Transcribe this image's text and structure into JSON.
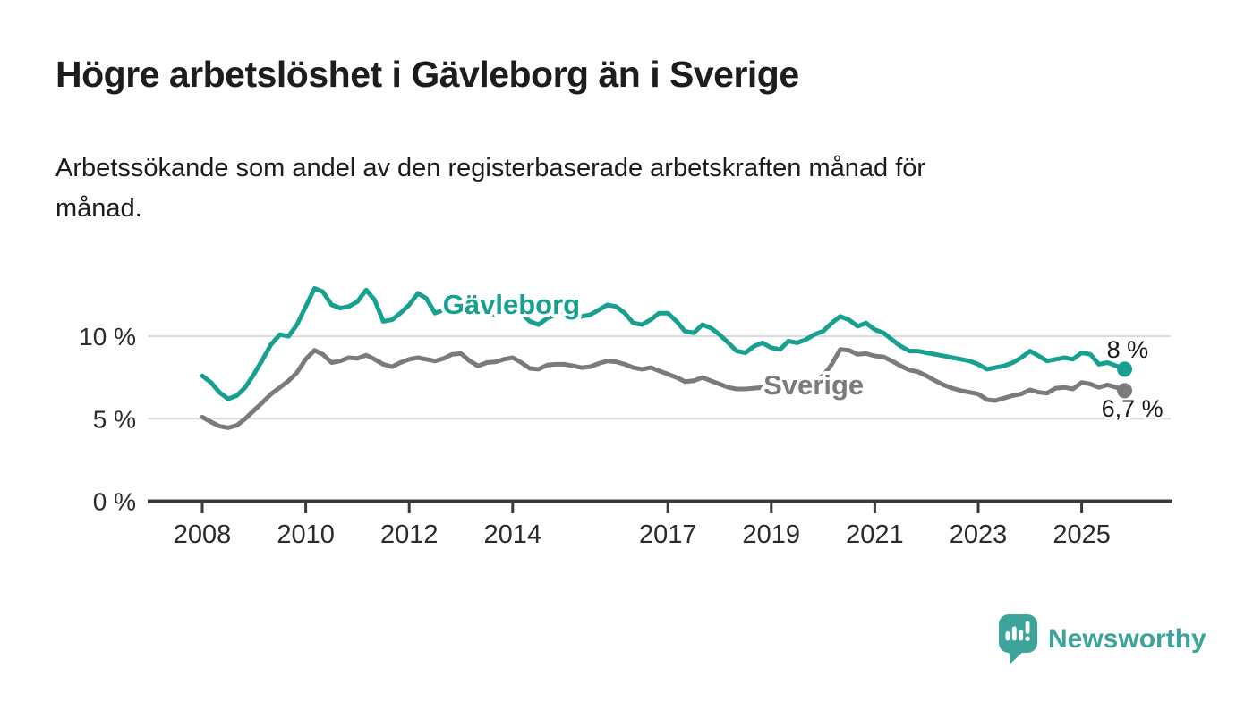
{
  "header": {
    "title": "Högre arbetslöshet i Gävleborg än i Sverige",
    "subtitle_lines": [
      "Arbetssökande som andel av den registerbaserade arbetskraften månad för",
      "månad."
    ]
  },
  "branding": {
    "logo_text": "Newsworthy",
    "logo_color": "#3ca49a"
  },
  "colors": {
    "gavleborg": "#17a08f",
    "sverige": "#7b7b7b",
    "grid": "#dcdcdc",
    "axis": "#3a3a3a",
    "tick_text": "#2b2b2b",
    "title_text": "#1d1d1b",
    "value_label_text": "#1a1a1a"
  },
  "chart_data": {
    "type": "line",
    "title": "Högre arbetslöshet i Gävleborg än i Sverige",
    "subtitle": "Arbetssökande som andel av den registerbaserade arbetskraften månad för månad.",
    "xlabel": "",
    "ylabel": "",
    "unit": "%",
    "legend_position": "inline-labels",
    "grid": "horizontal",
    "x_axis": {
      "range": [
        2007.0,
        2026.8
      ],
      "ticks": [
        2008,
        2010,
        2012,
        2014,
        2017,
        2019,
        2021,
        2023,
        2025
      ],
      "labels": [
        "2008",
        "2010",
        "2012",
        "2014",
        "2017",
        "2019",
        "2021",
        "2023",
        "2025"
      ]
    },
    "y_axis": {
      "range": [
        0,
        13.5
      ],
      "ticks": [
        0,
        5,
        10
      ],
      "labels": [
        "0 %",
        "5 %",
        "10 %"
      ],
      "gridlines": [
        5,
        10
      ]
    },
    "x": [
      2008,
      2008.17,
      2008.33,
      2008.5,
      2008.67,
      2008.83,
      2009,
      2009.17,
      2009.33,
      2009.5,
      2009.67,
      2009.83,
      2010,
      2010.17,
      2010.33,
      2010.5,
      2010.67,
      2010.83,
      2011,
      2011.17,
      2011.33,
      2011.5,
      2011.67,
      2011.83,
      2012,
      2012.17,
      2012.33,
      2012.5,
      2012.67,
      2012.83,
      2013,
      2013.17,
      2013.33,
      2013.5,
      2013.67,
      2013.83,
      2014,
      2014.17,
      2014.33,
      2014.5,
      2014.67,
      2014.83,
      2015,
      2015.17,
      2015.33,
      2015.5,
      2015.67,
      2015.83,
      2016,
      2016.17,
      2016.33,
      2016.5,
      2016.67,
      2016.83,
      2017,
      2017.17,
      2017.33,
      2017.5,
      2017.67,
      2017.83,
      2018,
      2018.17,
      2018.33,
      2018.5,
      2018.67,
      2018.83,
      2019,
      2019.17,
      2019.33,
      2019.5,
      2019.67,
      2019.83,
      2020,
      2020.17,
      2020.33,
      2020.5,
      2020.67,
      2020.83,
      2021,
      2021.17,
      2021.33,
      2021.5,
      2021.67,
      2021.83,
      2022,
      2022.17,
      2022.33,
      2022.5,
      2022.67,
      2022.83,
      2023,
      2023.17,
      2023.33,
      2023.5,
      2023.67,
      2023.83,
      2024,
      2024.17,
      2024.33,
      2024.5,
      2024.67,
      2024.83,
      2025,
      2025.17,
      2025.33,
      2025.5,
      2025.67,
      2025.83
    ],
    "series": [
      {
        "id": "gavleborg",
        "name": "Gävleborg",
        "color": "#17a08f",
        "end_label": "8 %",
        "end_value": 8.0,
        "label_anchor": {
          "x": 2012.65,
          "y": 11.35
        },
        "values": [
          7.6,
          7.2,
          6.6,
          6.2,
          6.4,
          6.9,
          7.7,
          8.6,
          9.5,
          10.1,
          10.0,
          10.7,
          11.8,
          12.9,
          12.7,
          11.9,
          11.7,
          11.8,
          12.1,
          12.8,
          12.2,
          10.9,
          11.0,
          11.4,
          11.9,
          12.6,
          12.3,
          11.4,
          11.6,
          11.9,
          12.1,
          12.0,
          11.6,
          11.4,
          11.3,
          11.6,
          11.7,
          11.4,
          10.9,
          10.7,
          11.1,
          11.3,
          11.5,
          11.4,
          11.2,
          11.3,
          11.6,
          11.9,
          11.8,
          11.4,
          10.8,
          10.7,
          11.0,
          11.4,
          11.4,
          10.9,
          10.3,
          10.2,
          10.7,
          10.5,
          10.1,
          9.6,
          9.1,
          9.0,
          9.4,
          9.6,
          9.3,
          9.2,
          9.7,
          9.6,
          9.8,
          10.1,
          10.3,
          10.8,
          11.2,
          11.0,
          10.6,
          10.8,
          10.4,
          10.2,
          9.8,
          9.4,
          9.1,
          9.1,
          9.0,
          8.9,
          8.8,
          8.7,
          8.6,
          8.5,
          8.3,
          8.0,
          8.1,
          8.2,
          8.4,
          8.7,
          9.1,
          8.8,
          8.5,
          8.6,
          8.7,
          8.6,
          9.0,
          8.9,
          8.3,
          8.4,
          8.2,
          8.0
        ]
      },
      {
        "id": "sverige",
        "name": "Sverige",
        "color": "#7b7b7b",
        "end_label": "6,7 %",
        "end_value": 6.7,
        "label_anchor": {
          "x": 2018.85,
          "y": 6.48
        },
        "values": [
          5.1,
          4.8,
          4.55,
          4.45,
          4.6,
          5.0,
          5.5,
          6.0,
          6.5,
          6.9,
          7.3,
          7.8,
          8.6,
          9.15,
          8.9,
          8.4,
          8.5,
          8.7,
          8.65,
          8.85,
          8.6,
          8.3,
          8.15,
          8.4,
          8.6,
          8.7,
          8.6,
          8.5,
          8.65,
          8.9,
          8.95,
          8.5,
          8.2,
          8.4,
          8.45,
          8.6,
          8.7,
          8.4,
          8.05,
          8.0,
          8.25,
          8.3,
          8.3,
          8.2,
          8.1,
          8.15,
          8.35,
          8.5,
          8.45,
          8.3,
          8.1,
          8.0,
          8.1,
          7.9,
          7.7,
          7.5,
          7.25,
          7.3,
          7.5,
          7.3,
          7.1,
          6.9,
          6.8,
          6.8,
          6.85,
          6.9,
          6.95,
          6.9,
          6.95,
          7.0,
          7.1,
          7.3,
          7.6,
          8.3,
          9.2,
          9.15,
          8.9,
          8.95,
          8.8,
          8.75,
          8.5,
          8.2,
          7.95,
          7.85,
          7.6,
          7.3,
          7.05,
          6.85,
          6.7,
          6.6,
          6.5,
          6.15,
          6.1,
          6.25,
          6.4,
          6.5,
          6.75,
          6.6,
          6.55,
          6.85,
          6.9,
          6.8,
          7.2,
          7.1,
          6.9,
          7.05,
          6.9,
          6.7
        ]
      }
    ]
  }
}
